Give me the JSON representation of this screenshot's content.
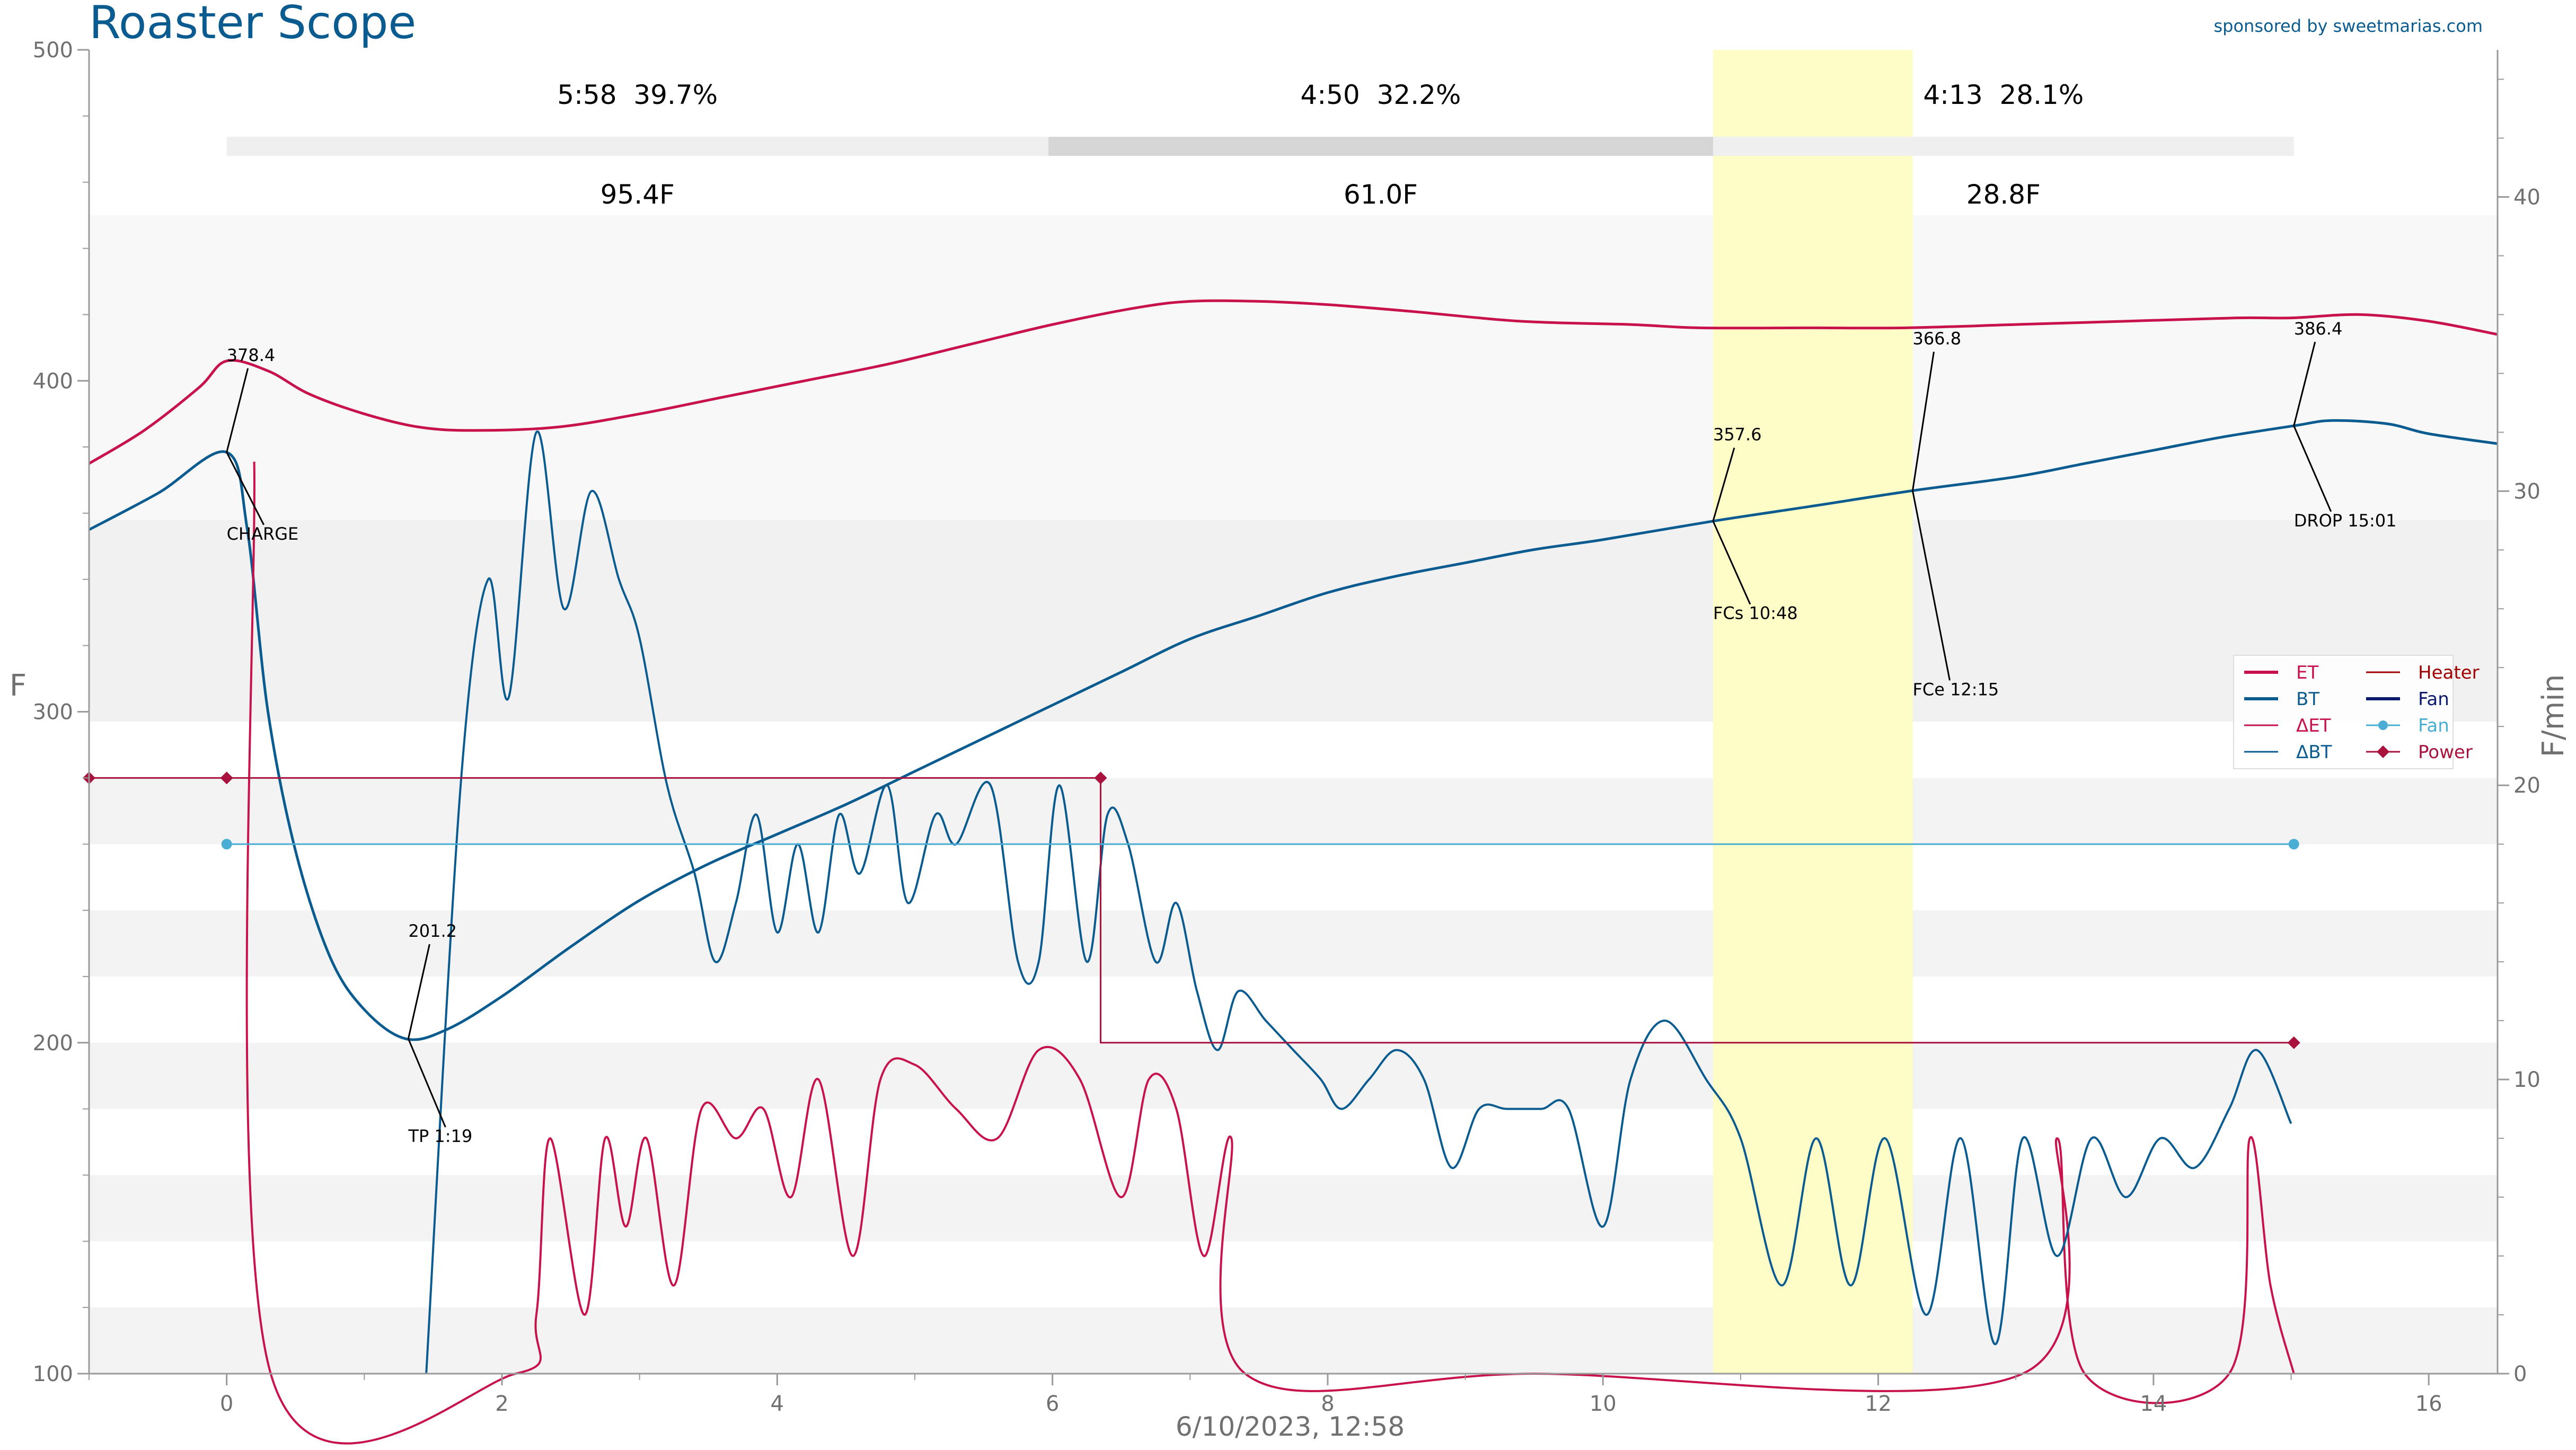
{
  "app": {
    "title": "Roaster Scope",
    "sponsor": "sponsored by sweetmarias.com",
    "title_color": "#0a5c90",
    "sponsor_color": "#0a5c90"
  },
  "phases": [
    {
      "time": "5:58",
      "percent": "39.7%",
      "temp_rise": "95.4F"
    },
    {
      "time": "4:50",
      "percent": "32.2%",
      "temp_rise": "61.0F"
    },
    {
      "time": "4:13",
      "percent": "28.1%",
      "temp_rise": "28.8F"
    }
  ],
  "axes": {
    "y_left_label": "F",
    "y_right_label": "F/min",
    "x_label": "6/10/2023, 12:58"
  },
  "legend": [
    {
      "label": "ET",
      "icon": "line-icon",
      "color": "#c8124b"
    },
    {
      "label": "Heater",
      "icon": "line-icon",
      "color": "#a00000"
    },
    {
      "label": "BT",
      "icon": "line-icon",
      "color": "#0a5c90"
    },
    {
      "label": "Fan",
      "icon": "line-icon",
      "color": "#0c1a6e"
    },
    {
      "label": "ΔET",
      "icon": "line-icon",
      "color": "#c8124b"
    },
    {
      "label": "Fan",
      "icon": "dot-line-icon",
      "color": "#4aaed4"
    },
    {
      "label": "ΔBT",
      "icon": "line-icon",
      "color": "#0a5c90"
    },
    {
      "label": "Power",
      "icon": "diamond-line-icon",
      "color": "#a8123c"
    }
  ],
  "annotations": [
    {
      "value": "378.4",
      "label": "CHARGE"
    },
    {
      "value": "201.2",
      "label": "TP 1:19"
    },
    {
      "value": "357.6",
      "label": "FCs 10:48"
    },
    {
      "value": "366.8",
      "label": "FCe 12:15"
    },
    {
      "value": "386.4",
      "label": "DROP 15:01"
    }
  ],
  "chart_data": {
    "type": "line",
    "xlim": [
      -1,
      16.5
    ],
    "ylim": [
      100,
      500
    ],
    "y2lim": [
      0,
      45
    ],
    "x_ticks": [
      "0",
      "2",
      "4",
      "6",
      "8",
      "10",
      "12",
      "14",
      "16"
    ],
    "y_ticks": [
      "100",
      "200",
      "300",
      "400",
      "500"
    ],
    "y2_ticks": [
      "0",
      "10",
      "20",
      "30",
      "40"
    ],
    "grid": false,
    "legend_position": "right",
    "first_crack_window": [
      10.8,
      12.25
    ],
    "phase_bar_segments": [
      [
        0,
        5.97
      ],
      [
        5.97,
        10.8
      ],
      [
        10.8,
        15.02
      ]
    ],
    "series": [
      {
        "name": "ET",
        "axis": "left",
        "color": "#c8124b",
        "x": [
          -1,
          -0.6,
          -0.2,
          0,
          0.3,
          0.6,
          1,
          1.4,
          1.8,
          2.4,
          3,
          3.6,
          4.2,
          4.8,
          5.4,
          6,
          6.6,
          7,
          7.5,
          8,
          8.6,
          9.4,
          10.2,
          10.7,
          11.5,
          12.2,
          13,
          13.8,
          14.6,
          15,
          15.5,
          16,
          16.5
        ],
        "y": [
          375,
          385,
          398,
          406,
          403,
          396,
          390,
          386,
          385,
          386,
          390,
          395,
          400,
          405,
          411,
          417,
          422,
          424,
          424,
          423,
          421,
          418,
          417,
          416,
          416,
          416,
          417,
          418,
          419,
          419,
          420,
          418,
          414
        ]
      },
      {
        "name": "BT",
        "axis": "left",
        "color": "#0a5c90",
        "x": [
          -1,
          -0.5,
          0,
          0.15,
          0.3,
          0.5,
          0.75,
          1,
          1.3,
          1.6,
          2,
          2.5,
          3,
          3.5,
          4,
          4.5,
          5,
          5.5,
          6,
          6.5,
          7,
          7.5,
          8,
          8.5,
          9,
          9.5,
          10,
          10.8,
          11.5,
          12.25,
          13,
          13.5,
          14,
          14.5,
          15.02,
          15.3,
          15.7,
          16,
          16.5
        ],
        "y": [
          355,
          366,
          378.4,
          355,
          300,
          258,
          226,
          210,
          201.2,
          204,
          214,
          229,
          243,
          254,
          263,
          272,
          282,
          292,
          302,
          312,
          322,
          329,
          336,
          341,
          345,
          349,
          352,
          357.6,
          362,
          366.8,
          371,
          375,
          379,
          383,
          386.4,
          388,
          387,
          384,
          381
        ]
      },
      {
        "name": "ΔET",
        "axis": "right",
        "color": "#c8124b",
        "x": [
          0.2,
          0.32,
          2.1,
          2.25,
          2.35,
          2.6,
          2.75,
          2.9,
          3.05,
          3.25,
          3.45,
          3.7,
          3.9,
          4.1,
          4.3,
          4.55,
          4.75,
          5,
          5.3,
          5.6,
          5.9,
          6.2,
          6.5,
          6.7,
          6.9,
          7.1,
          7.3,
          7.4,
          9.5,
          13.05,
          13.3,
          13.5,
          14.55,
          14.7,
          14.85,
          15.02
        ],
        "y": [
          31,
          0,
          0,
          2,
          8,
          2,
          8,
          5,
          8,
          3,
          9,
          8,
          9,
          6,
          10,
          4,
          10,
          10.5,
          9,
          8,
          11,
          10,
          6,
          10,
          9,
          4,
          8,
          0,
          0,
          0,
          8,
          0,
          0,
          8,
          3,
          0
        ]
      },
      {
        "name": "ΔBT",
        "axis": "right",
        "color": "#0a5c90",
        "x": [
          1.45,
          1.7,
          1.9,
          2.05,
          2.25,
          2.45,
          2.65,
          2.85,
          3,
          3.2,
          3.4,
          3.55,
          3.7,
          3.85,
          4,
          4.15,
          4.3,
          4.45,
          4.6,
          4.8,
          4.95,
          5.15,
          5.3,
          5.55,
          5.75,
          5.9,
          6.05,
          6.25,
          6.4,
          6.55,
          6.75,
          6.9,
          7.05,
          7.2,
          7.35,
          7.55,
          7.75,
          7.95,
          8.1,
          8.3,
          8.5,
          8.7,
          8.9,
          9.1,
          9.3,
          9.55,
          9.75,
          10,
          10.2,
          10.45,
          10.75,
          11,
          11.3,
          11.55,
          11.8,
          12.05,
          12.35,
          12.6,
          12.85,
          13.05,
          13.3,
          13.55,
          13.8,
          14.05,
          14.3,
          14.55,
          14.75,
          15
        ],
        "y": [
          0,
          20,
          27,
          23,
          32,
          26,
          30,
          27,
          25,
          20,
          17,
          14,
          16,
          19,
          15,
          18,
          15,
          19,
          17,
          20,
          16,
          19,
          18,
          20,
          14,
          14,
          20,
          14,
          19,
          18,
          14,
          16,
          13,
          11,
          13,
          12,
          11,
          10,
          9,
          10,
          11,
          10,
          7,
          9,
          9,
          9,
          9,
          5,
          10,
          12,
          10,
          8,
          3,
          8,
          3,
          8,
          2,
          8,
          1,
          8,
          4,
          8,
          6,
          8,
          7,
          9,
          11,
          8.5
        ]
      },
      {
        "name": "Power",
        "axis": "left",
        "color": "#a8123c",
        "x": [
          -1,
          0,
          6.35,
          6.35,
          15.02
        ],
        "y": [
          280,
          280,
          280,
          200,
          200
        ],
        "markers": [
          -1,
          0,
          6.35,
          15.02
        ]
      },
      {
        "name": "Fan",
        "axis": "left",
        "color": "#4aaed4",
        "x": [
          0,
          15.02
        ],
        "y": [
          260,
          260
        ],
        "markers": [
          0,
          15.02
        ]
      }
    ],
    "events": [
      {
        "label": "CHARGE",
        "time": 0,
        "bt": 378.4
      },
      {
        "label": "TP",
        "time": 1.32,
        "bt": 201.2
      },
      {
        "label": "FCs",
        "time": 10.8,
        "bt": 357.6
      },
      {
        "label": "FCe",
        "time": 12.25,
        "bt": 366.8
      },
      {
        "label": "DROP",
        "time": 15.02,
        "bt": 386.4
      }
    ]
  }
}
